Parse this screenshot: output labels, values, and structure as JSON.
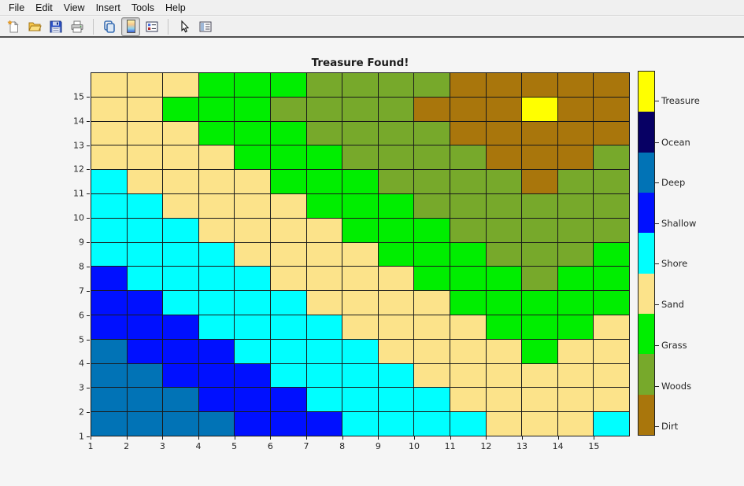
{
  "menu_bar": {
    "items": [
      "File",
      "Edit",
      "View",
      "Insert",
      "Tools",
      "Help"
    ]
  },
  "toolbar": {
    "buttons": [
      {
        "name": "new-figure",
        "pressed": false
      },
      {
        "name": "open",
        "pressed": false
      },
      {
        "name": "save",
        "pressed": false
      },
      {
        "name": "print",
        "pressed": false
      },
      {
        "name": "copy",
        "pressed": false
      },
      {
        "name": "toggle-colorbar",
        "pressed": true
      },
      {
        "name": "toggle-legend",
        "pressed": false
      },
      {
        "name": "pointer-tool",
        "pressed": false
      },
      {
        "name": "plot-browser",
        "pressed": false
      }
    ]
  },
  "chart_data": {
    "type": "heatmap",
    "title": "Treasure Found!",
    "x_ticks": [
      "1",
      "2",
      "3",
      "4",
      "5",
      "6",
      "7",
      "8",
      "9",
      "10",
      "11",
      "12",
      "13",
      "14",
      "15"
    ],
    "y_ticks": [
      "1",
      "2",
      "3",
      "4",
      "5",
      "6",
      "7",
      "8",
      "9",
      "10",
      "11",
      "12",
      "13",
      "14",
      "15"
    ],
    "x_range": [
      1,
      16
    ],
    "y_range": [
      1,
      16
    ],
    "grid_lines": true,
    "grid_line_color": "#1a1a1a",
    "legend_position": "right-colorbar",
    "terrains": [
      {
        "code": "T",
        "name": "Treasure",
        "color": "#ffff00"
      },
      {
        "code": "O",
        "name": "Ocean",
        "color": "#070064"
      },
      {
        "code": "P",
        "name": "Deep",
        "color": "#0173b6"
      },
      {
        "code": "B",
        "name": "Shallow",
        "color": "#0010ff"
      },
      {
        "code": "C",
        "name": "Shore",
        "color": "#00ffff"
      },
      {
        "code": "S",
        "name": "Sand",
        "color": "#fce38a"
      },
      {
        "code": "G",
        "name": "Grass",
        "color": "#00ee00"
      },
      {
        "code": "W",
        "name": "Woods",
        "color": "#77a92b"
      },
      {
        "code": "D",
        "name": "Dirt",
        "color": "#a9760c"
      }
    ],
    "row_y_values_top_to_bottom": [
      15,
      14,
      13,
      12,
      11,
      10,
      9,
      8,
      7,
      6,
      5,
      4,
      3,
      2,
      1
    ],
    "grid_rows_top_to_bottom": [
      "SSSGGGWWWWDDDDD",
      "SSGGGWWWWDDDTDD",
      "SSSGGGWWWWDDDDD",
      "SSSSGGGWWWWDDDW",
      "CSSSSGGGWWWWDWW",
      "CCSSSSGGGWWWWWW",
      "CCCSSSSGGGWWWWW",
      "CCCCSSSSGGGWWWG",
      "BCCCCSSSSGGGWGG",
      "BBCCCCSSSSGGGGG",
      "BBBCCCCSSSSGGGS",
      "PBBBCCCCSSSSGSS",
      "PPBBBCCCCSSSSSS",
      "PPPBBBCCCCSSSSS",
      "PPPPBBBCCCCSSSC"
    ],
    "treasure_cell": {
      "x": 13,
      "y": 14
    },
    "colorbar_labels_top_to_bottom": [
      "Treasure",
      "Ocean",
      "Deep",
      "Shallow",
      "Shore",
      "Sand",
      "Grass",
      "Woods",
      "Dirt"
    ],
    "colorbar_label_offsets_pct": [
      8.2,
      19.7,
      30.7,
      41.9,
      52.9,
      64.1,
      75.2,
      86.4,
      97.4
    ]
  }
}
